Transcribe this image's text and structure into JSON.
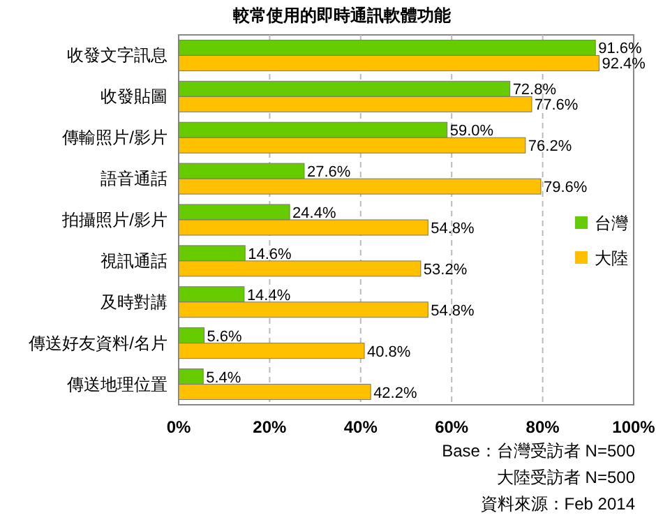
{
  "chart_data": {
    "type": "bar",
    "orientation": "horizontal",
    "title": "較常使用的即時通訊軟體功能",
    "categories": [
      "收發文字訊息",
      "收發貼圖",
      "傳輸照片/影片",
      "語音通話",
      "拍攝照片/影片",
      "視訊通話",
      "及時對講",
      "傳送好友資料/名片",
      "傳送地理位置"
    ],
    "series": [
      {
        "name": "台灣",
        "color": "#66cc00",
        "values": [
          91.6,
          72.8,
          59.0,
          27.6,
          24.4,
          14.6,
          14.4,
          5.6,
          5.4
        ],
        "value_labels": [
          "91.6%",
          "72.8%",
          "59.0%",
          "27.6%",
          "24.4%",
          "14.6%",
          "14.4%",
          "5.6%",
          "5.4%"
        ]
      },
      {
        "name": "大陸",
        "color": "#ffc000",
        "values": [
          92.4,
          77.6,
          76.2,
          79.6,
          54.8,
          53.2,
          54.8,
          40.8,
          42.2
        ],
        "value_labels": [
          "92.4%",
          "77.6%",
          "76.2%",
          "79.6%",
          "54.8%",
          "53.2%",
          "54.8%",
          "40.8%",
          "42.2%"
        ]
      }
    ],
    "xlim": [
      0,
      100
    ],
    "xticks": [
      {
        "value": 0,
        "label": "0%"
      },
      {
        "value": 20,
        "label": "20%"
      },
      {
        "value": 40,
        "label": "40%"
      },
      {
        "value": 60,
        "label": "60%"
      },
      {
        "value": 80,
        "label": "80%"
      },
      {
        "value": 100,
        "label": "100%"
      }
    ],
    "grid": "x",
    "legend": "right",
    "annotations": [
      "Base：台灣受訪者 N=500",
      "大陸受訪者 N=500",
      "資料來源：Feb 2014"
    ]
  }
}
